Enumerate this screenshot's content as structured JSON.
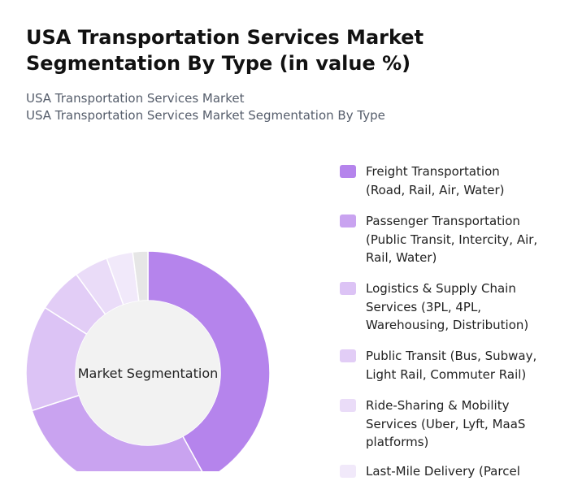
{
  "chart_data": {
    "type": "donut",
    "title": "USA Transportation Services Market Segmentation By Type (in value %)",
    "subtitle": [
      "USA Transportation Services Market",
      "USA Transportation Services Market Segmentation By Type"
    ],
    "center_label": "Market Segmentation",
    "categories": [
      "Freight Transportation (Road, Rail, Air, Water)",
      "Passenger Transportation (Public Transit, Intercity, Air, Rail, Water)",
      "Logistics & Supply Chain Services (3PL, 4PL, Warehousing, Distribution)",
      "Public Transit (Bus, Subway, Light Rail, Commuter Rail)",
      "Ride-Sharing & Mobility Services (Uber, Lyft, MaaS platforms)",
      "Last-Mile Delivery (Parcel",
      null
    ],
    "values": [
      42,
      28,
      14,
      6,
      4.5,
      3.5,
      2
    ],
    "colors": [
      "#b584ec",
      "#c9a3f0",
      "#dcc3f5",
      "#e2cdf6",
      "#eadcf8",
      "#f1e9fa",
      "#e6e6e6"
    ]
  }
}
